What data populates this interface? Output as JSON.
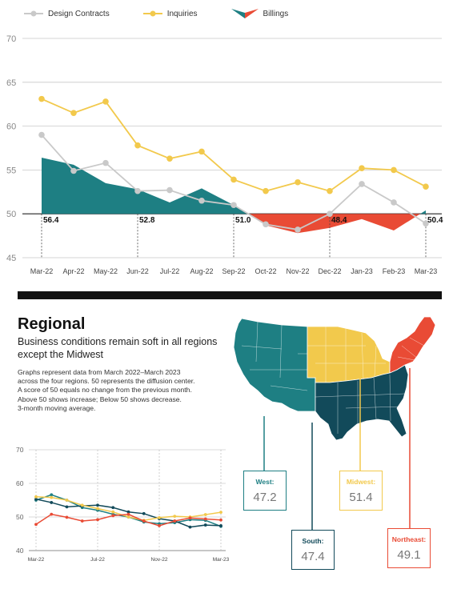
{
  "legend": [
    {
      "label": "Design Contracts",
      "color": "#c9c9c9"
    },
    {
      "label": "Inquiries",
      "color": "#f2c94c"
    },
    {
      "label": "Billings",
      "color": "#1e7f83"
    }
  ],
  "chart_data": [
    {
      "type": "line",
      "x": [
        "Mar-22",
        "Apr-22",
        "May-22",
        "Jun-22",
        "Jul-22",
        "Aug-22",
        "Sep-22",
        "Oct-22",
        "Nov-22",
        "Dec-22",
        "Jan-23",
        "Feb-23",
        "Mar-23"
      ],
      "ylim": [
        45,
        70
      ],
      "yticks": [
        45,
        50,
        55,
        60,
        65,
        70
      ],
      "grid": true,
      "legend_position": "top",
      "series": [
        {
          "name": "Design Contracts",
          "type": "line",
          "color": "#c9c9c9",
          "values": [
            59.0,
            54.9,
            55.8,
            52.6,
            52.7,
            51.5,
            51.0,
            48.8,
            48.2,
            50.0,
            53.4,
            51.3,
            48.9
          ]
        },
        {
          "name": "Inquiries",
          "type": "line",
          "color": "#f2c94c",
          "values": [
            63.1,
            61.5,
            62.8,
            57.8,
            56.3,
            57.1,
            53.9,
            52.6,
            53.6,
            52.6,
            55.2,
            55.0,
            53.1
          ]
        },
        {
          "name": "Billings",
          "type": "area",
          "baseline": 50,
          "color_above": "#1e7f83",
          "color_below": "#e94b35",
          "values": [
            56.4,
            55.6,
            53.5,
            52.8,
            51.3,
            52.9,
            51.0,
            48.7,
            47.8,
            48.4,
            49.4,
            48.1,
            50.4
          ]
        }
      ],
      "annotations": [
        {
          "x": "Mar-22",
          "label": "56.4"
        },
        {
          "x": "Jun-22",
          "label": "52.8"
        },
        {
          "x": "Sep-22",
          "label": "51.0"
        },
        {
          "x": "Dec-22",
          "label": "48.4"
        },
        {
          "x": "Mar-23",
          "label": "50.4"
        }
      ]
    },
    {
      "type": "line",
      "x": [
        "Mar-22",
        "Apr-22",
        "May-22",
        "Jun-22",
        "Jul-22",
        "Aug-22",
        "Sep-22",
        "Oct-22",
        "Nov-22",
        "Dec-22",
        "Jan-23",
        "Feb-23",
        "Mar-23"
      ],
      "xticklabels": [
        "Mar-22",
        "Jul-22",
        "Nov-22",
        "Mar-23"
      ],
      "ylim": [
        40,
        70
      ],
      "yticks": [
        40,
        50,
        60,
        70
      ],
      "series": [
        {
          "name": "West",
          "color": "#1e7f83",
          "values": [
            55.0,
            56.6,
            55.0,
            52.8,
            52.0,
            50.8,
            50.0,
            48.5,
            48.0,
            48.3,
            49.2,
            49.0,
            47.2
          ]
        },
        {
          "name": "South",
          "color": "#124a5a",
          "values": [
            55.3,
            54.3,
            53.0,
            53.3,
            53.5,
            52.8,
            51.5,
            51.0,
            49.5,
            48.8,
            47.0,
            47.6,
            47.4
          ]
        },
        {
          "name": "Midwest",
          "color": "#f2c94c",
          "values": [
            56.0,
            55.8,
            55.0,
            53.5,
            52.5,
            51.5,
            50.0,
            49.0,
            49.8,
            50.2,
            50.0,
            50.7,
            51.4
          ]
        },
        {
          "name": "Northeast",
          "color": "#e94b35",
          "values": [
            47.8,
            50.8,
            49.9,
            48.8,
            49.2,
            50.4,
            50.8,
            48.8,
            47.4,
            48.8,
            49.7,
            49.4,
            49.1
          ]
        }
      ]
    }
  ],
  "regional": {
    "title": "Regional",
    "subtitle": "Business conditions remain soft in all regions except the Midwest",
    "description": [
      "Graphs represent data from March 2022–March 2023",
      "across the four regions. 50 represents the diffusion center.",
      "A score of 50 equals no change from the previous month.",
      "Above 50 shows increase; Below 50 shows decrease.",
      "3-month moving average."
    ]
  },
  "regions": {
    "west": {
      "label": "West:",
      "value": "47.2",
      "color": "#1e7f83"
    },
    "south": {
      "label": "South:",
      "value": "47.4",
      "color": "#124a5a"
    },
    "midwest": {
      "label": "Midwest:",
      "value": "51.4",
      "color": "#f2c94c"
    },
    "northeast": {
      "label": "Northeast:",
      "value": "49.1",
      "color": "#e94b35"
    }
  }
}
